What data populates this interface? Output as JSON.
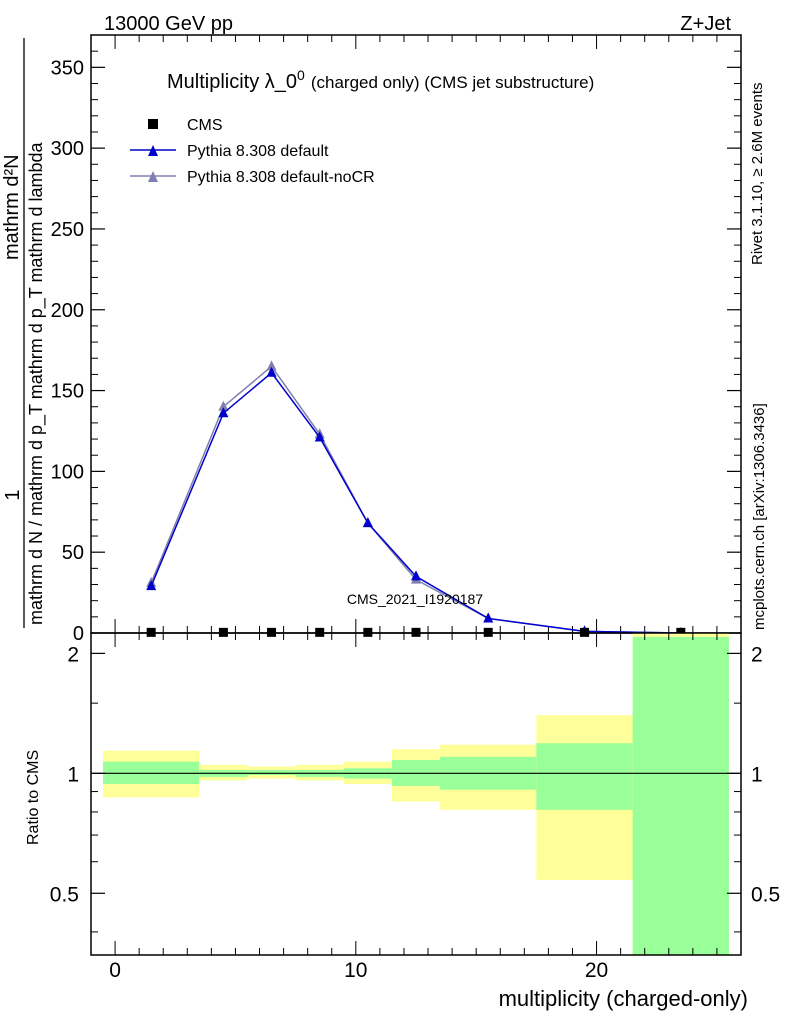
{
  "header": {
    "left": "13000 GeV pp",
    "right": "Z+Jet"
  },
  "side_labels": {
    "rivet": "Rivet 3.1.10, ≥ 2.6M events",
    "mcplots": "mcplots.cern.ch [arXiv:1306.3436]"
  },
  "analysis_tag": "CMS_2021_I1920187",
  "colors": {
    "cms": "#000000",
    "pythia_default": "#0000cc",
    "pythia_nocr": "#8080b0",
    "band_inner": "#99ff99",
    "band_outer": "#ffff99"
  },
  "chart_data": [
    {
      "type": "line",
      "title": "Multiplicity λ_0",
      "title_superscript": "0",
      "title_suffix": "(charged only) (CMS jet substructure)",
      "ylabel_numerator": "1",
      "ylabel_main": "mathrm d N / mathrm d p_T mathrm d p_T mathrm d lambda",
      "ylabel_top": "mathrm d²N",
      "ylim": [
        0,
        370
      ],
      "yticks": [
        50,
        100,
        150,
        200,
        250,
        300,
        350
      ],
      "xlim": [
        -1,
        26
      ],
      "legend_position": "top-left",
      "legend": [
        "CMS",
        "Pythia 8.308 default",
        "Pythia 8.308 default-noCR"
      ],
      "series": [
        {
          "name": "CMS",
          "marker": "square",
          "x": [
            1.5,
            4.5,
            6.5,
            8.5,
            10.5,
            12.5,
            15.5,
            19.5,
            23.5
          ],
          "y": [
            0.4,
            0.4,
            0.4,
            0.4,
            0.4,
            0.4,
            0.4,
            0.4,
            0.4
          ]
        },
        {
          "name": "Pythia 8.308 default",
          "marker": "triangle",
          "x": [
            1.5,
            4.5,
            6.5,
            8.5,
            10.5,
            12.5,
            15.5,
            19.5,
            23.5
          ],
          "y": [
            29,
            136,
            161,
            121,
            68,
            35,
            9,
            1,
            0
          ]
        },
        {
          "name": "Pythia 8.308 default-noCR",
          "marker": "triangle",
          "x": [
            1.5,
            4.5,
            6.5,
            8.5,
            10.5,
            12.5,
            15.5,
            19.5,
            23.5
          ],
          "y": [
            31,
            140,
            165,
            123,
            68,
            33,
            9,
            1,
            0
          ]
        }
      ]
    },
    {
      "type": "area",
      "ylabel": "Ratio to CMS",
      "xlabel": "multiplicity (charged-only)",
      "ylim": [
        0.35,
        2.25
      ],
      "yticks": [
        0.5,
        1,
        2
      ],
      "ytick_labels": [
        "0.5",
        "1",
        "2"
      ],
      "xticks": [
        0,
        10,
        20
      ],
      "xtick_labels": [
        "0",
        "10",
        "20"
      ],
      "reference_line": 1,
      "bins": [
        {
          "lo": -0.5,
          "hi": 3.5,
          "inner": [
            0.94,
            1.07
          ],
          "outer": [
            0.87,
            1.14
          ]
        },
        {
          "lo": 3.5,
          "hi": 5.5,
          "inner": [
            0.98,
            1.02
          ],
          "outer": [
            0.96,
            1.05
          ]
        },
        {
          "lo": 5.5,
          "hi": 7.5,
          "inner": [
            0.99,
            1.02
          ],
          "outer": [
            0.97,
            1.04
          ]
        },
        {
          "lo": 7.5,
          "hi": 9.5,
          "inner": [
            0.98,
            1.02
          ],
          "outer": [
            0.96,
            1.05
          ]
        },
        {
          "lo": 9.5,
          "hi": 11.5,
          "inner": [
            0.97,
            1.03
          ],
          "outer": [
            0.94,
            1.07
          ]
        },
        {
          "lo": 11.5,
          "hi": 13.5,
          "inner": [
            0.93,
            1.08
          ],
          "outer": [
            0.85,
            1.15
          ]
        },
        {
          "lo": 13.5,
          "hi": 17.5,
          "inner": [
            0.91,
            1.1
          ],
          "outer": [
            0.81,
            1.18
          ]
        },
        {
          "lo": 17.5,
          "hi": 21.5,
          "inner": [
            0.81,
            1.19
          ],
          "outer": [
            0.54,
            1.4
          ]
        },
        {
          "lo": 21.5,
          "hi": 25.5,
          "inner": [
            0.35,
            2.2
          ],
          "outer": [
            0.35,
            2.25
          ]
        }
      ]
    }
  ]
}
